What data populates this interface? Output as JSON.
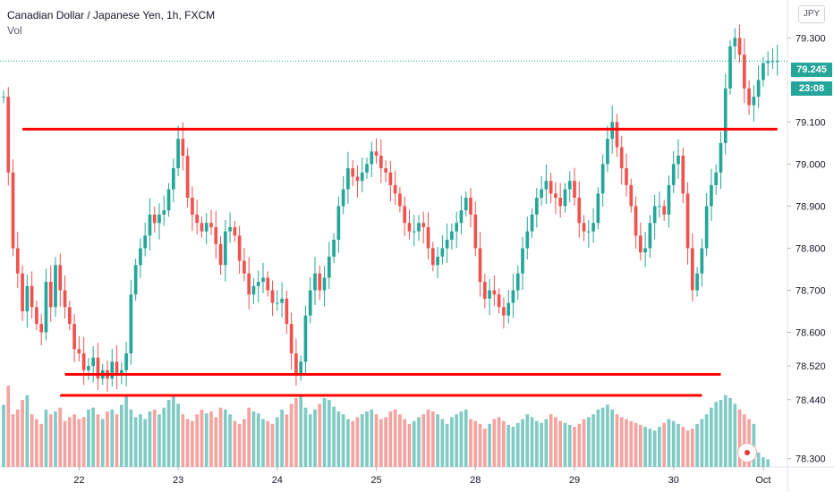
{
  "header": {
    "title": "Canadian Dollar / Japanese Yen, 1h, FXCM",
    "indicator": "Vol"
  },
  "currency_button": "JPY",
  "last_price": {
    "label": "79.245",
    "countdown": "23:08",
    "value": 79.245
  },
  "colors": {
    "up": "#26a69a",
    "down": "#ef5350",
    "up_vol": "#80cbc4",
    "down_vol": "#f5a3a1",
    "lines": "#ff0000",
    "last_price": "#26a69a"
  },
  "chart_data": {
    "type": "candlestick",
    "title": "Canadian Dollar / Japanese Yen, 1h, FXCM",
    "y_ticks": [
      "79.300",
      "79.100",
      "79.000",
      "78.900",
      "78.800",
      "78.700",
      "78.600",
      "78.520",
      "78.440",
      "78.300"
    ],
    "y_tick_values": [
      79.3,
      79.1,
      79.0,
      78.9,
      78.8,
      78.7,
      78.6,
      78.52,
      78.44,
      78.3
    ],
    "ylim": [
      78.28,
      79.39
    ],
    "x_ticks": [
      "22",
      "23",
      "24",
      "25",
      "28",
      "29",
      "30",
      "Oct"
    ],
    "x_tick_index": [
      16,
      37,
      58,
      79,
      100,
      121,
      142,
      161
    ],
    "candle_count": 165,
    "grid": false,
    "horizontal_lines": [
      {
        "name": "resistance",
        "value": 79.083,
        "from_index": 4,
        "to_index": 164
      },
      {
        "name": "support-upper",
        "value": 78.5,
        "from_index": 13,
        "to_index": 152
      },
      {
        "name": "support-lower",
        "value": 78.45,
        "from_index": 12,
        "to_index": 148
      }
    ],
    "last_price": 79.245,
    "closes": [
      79.16,
      78.98,
      78.8,
      78.74,
      78.65,
      78.71,
      78.66,
      78.62,
      78.6,
      78.72,
      78.66,
      78.76,
      78.7,
      78.66,
      78.62,
      78.56,
      78.55,
      78.51,
      78.52,
      78.54,
      78.49,
      78.51,
      78.49,
      78.53,
      78.5,
      78.51,
      78.55,
      78.69,
      78.76,
      78.8,
      78.83,
      78.88,
      78.86,
      78.88,
      78.89,
      78.94,
      78.99,
      79.06,
      79.02,
      78.92,
      78.88,
      78.86,
      78.84,
      78.86,
      78.85,
      78.81,
      78.76,
      78.84,
      78.85,
      78.83,
      78.77,
      78.74,
      78.69,
      78.71,
      78.72,
      78.73,
      78.7,
      78.67,
      78.67,
      78.68,
      78.62,
      78.55,
      78.5,
      78.53,
      78.64,
      78.7,
      78.74,
      78.7,
      78.73,
      78.78,
      78.82,
      78.9,
      78.94,
      78.99,
      78.97,
      78.96,
      78.98,
      79.0,
      79.03,
      79.02,
      78.99,
      78.98,
      78.95,
      78.93,
      78.9,
      78.86,
      78.84,
      78.84,
      78.86,
      78.85,
      78.8,
      78.76,
      78.78,
      78.8,
      78.82,
      78.84,
      78.86,
      78.89,
      78.92,
      78.88,
      78.8,
      78.72,
      78.68,
      78.7,
      78.69,
      78.66,
      78.64,
      78.67,
      78.7,
      78.74,
      78.8,
      78.84,
      78.88,
      78.92,
      78.94,
      78.96,
      78.93,
      78.92,
      78.9,
      78.94,
      78.96,
      78.92,
      78.86,
      78.84,
      78.84,
      78.86,
      78.93,
      79.0,
      79.06,
      79.1,
      79.04,
      78.99,
      78.95,
      78.9,
      78.83,
      78.79,
      78.8,
      78.86,
      78.9,
      78.9,
      78.88,
      78.95,
      79.0,
      79.02,
      78.93,
      78.8,
      78.7,
      78.74,
      78.8,
      78.9,
      78.95,
      78.98,
      79.05,
      79.18,
      79.28,
      79.3,
      79.26,
      79.18,
      79.14,
      79.16,
      79.2,
      79.24,
      79.245,
      79.245,
      79.245
    ],
    "volumes": [
      0.65,
      0.85,
      0.55,
      0.6,
      0.7,
      0.75,
      0.55,
      0.5,
      0.45,
      0.6,
      0.55,
      0.58,
      0.62,
      0.48,
      0.52,
      0.55,
      0.5,
      0.52,
      0.6,
      0.62,
      0.55,
      0.5,
      0.58,
      0.6,
      0.55,
      0.65,
      0.75,
      0.6,
      0.52,
      0.55,
      0.5,
      0.58,
      0.6,
      0.55,
      0.62,
      0.7,
      0.75,
      0.66,
      0.55,
      0.5,
      0.48,
      0.55,
      0.6,
      0.56,
      0.58,
      0.52,
      0.62,
      0.6,
      0.55,
      0.48,
      0.45,
      0.5,
      0.62,
      0.58,
      0.56,
      0.5,
      0.48,
      0.45,
      0.52,
      0.6,
      0.55,
      0.66,
      0.72,
      0.75,
      0.62,
      0.55,
      0.6,
      0.66,
      0.72,
      0.7,
      0.63,
      0.58,
      0.55,
      0.5,
      0.48,
      0.52,
      0.55,
      0.58,
      0.6,
      0.55,
      0.5,
      0.52,
      0.58,
      0.6,
      0.55,
      0.5,
      0.45,
      0.48,
      0.52,
      0.55,
      0.6,
      0.58,
      0.55,
      0.5,
      0.45,
      0.52,
      0.55,
      0.58,
      0.6,
      0.5,
      0.48,
      0.45,
      0.4,
      0.45,
      0.5,
      0.52,
      0.48,
      0.44,
      0.42,
      0.46,
      0.5,
      0.55,
      0.52,
      0.48,
      0.46,
      0.5,
      0.55,
      0.52,
      0.48,
      0.46,
      0.44,
      0.42,
      0.45,
      0.5,
      0.52,
      0.55,
      0.6,
      0.62,
      0.65,
      0.6,
      0.55,
      0.52,
      0.5,
      0.48,
      0.46,
      0.44,
      0.42,
      0.4,
      0.38,
      0.42,
      0.46,
      0.5,
      0.48,
      0.45,
      0.42,
      0.38,
      0.4,
      0.45,
      0.5,
      0.55,
      0.62,
      0.68,
      0.7,
      0.75,
      0.72,
      0.66,
      0.6,
      0.55,
      0.5,
      0.45,
      0.15,
      0.1,
      0.08
    ]
  }
}
